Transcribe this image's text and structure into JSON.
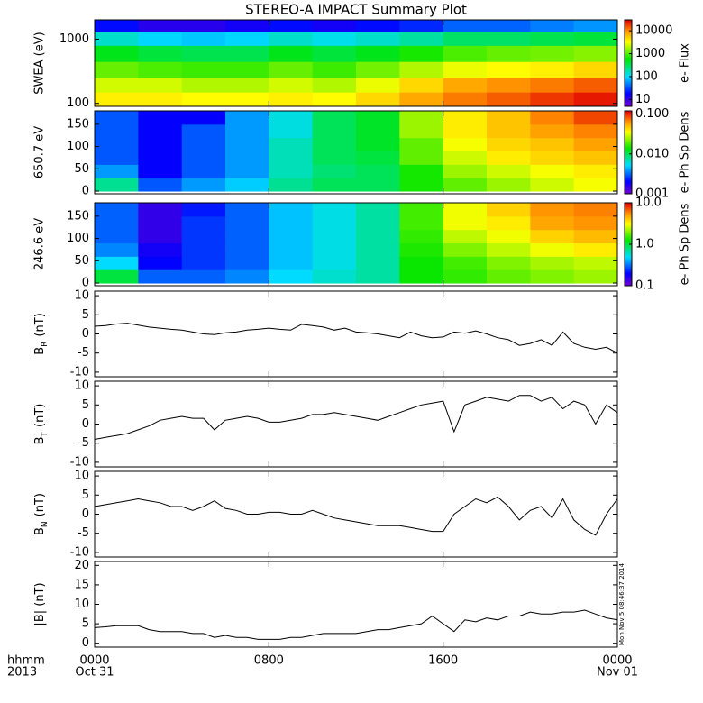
{
  "chart_data": [
    {
      "type": "heatmap",
      "title": "STEREO-A IMPACT Summary Plot",
      "ylabel": "SWEA (eV)",
      "yscale": "log",
      "ylim": [
        90,
        2000
      ],
      "yticks": [
        100,
        1000
      ],
      "x_edges": [
        0,
        2,
        4,
        6,
        8,
        10,
        12,
        14,
        16,
        18,
        20,
        22,
        24
      ],
      "y_edges": [
        90,
        150,
        250,
        450,
        800,
        1300,
        2000
      ],
      "z": [
        [
          4000,
          4000,
          3500,
          3500,
          4000,
          3500,
          5000,
          8000,
          12000,
          15000,
          20000,
          25000
        ],
        [
          2500,
          2500,
          2000,
          2000,
          2500,
          2000,
          3000,
          5000,
          8000,
          10000,
          12000,
          15000
        ],
        [
          1200,
          1000,
          900,
          900,
          1200,
          900,
          1300,
          2000,
          3000,
          3500,
          4000,
          5000
        ],
        [
          500,
          400,
          350,
          350,
          500,
          400,
          500,
          700,
          1000,
          1200,
          1300,
          1500
        ],
        [
          150,
          100,
          90,
          100,
          150,
          120,
          150,
          200,
          300,
          300,
          350,
          400
        ],
        [
          20,
          12,
          12,
          15,
          20,
          15,
          20,
          25,
          40,
          40,
          50,
          60
        ]
      ],
      "zscale": "log",
      "zlim": [
        5,
        30000
      ],
      "zticks": [
        10,
        100,
        1000,
        10000
      ],
      "zlabel": "e- Flux"
    },
    {
      "type": "heatmap",
      "ylabel": "650.7 eV",
      "yscale": "linear",
      "ylim": [
        -6,
        180
      ],
      "yticks": [
        0,
        50,
        100,
        150
      ],
      "x_edges": [
        0,
        2,
        4,
        6,
        8,
        10,
        12,
        14,
        16,
        18,
        20,
        22,
        24
      ],
      "y_edges": [
        0,
        30,
        60,
        90,
        120,
        150,
        180
      ],
      "z": [
        [
          0.008,
          0.003,
          0.004,
          0.005,
          0.008,
          0.01,
          0.01,
          0.015,
          0.02,
          0.025,
          0.03,
          0.035
        ],
        [
          0.004,
          0.002,
          0.003,
          0.004,
          0.007,
          0.009,
          0.01,
          0.015,
          0.025,
          0.03,
          0.035,
          0.04
        ],
        [
          0.003,
          0.002,
          0.003,
          0.004,
          0.007,
          0.01,
          0.011,
          0.02,
          0.03,
          0.04,
          0.045,
          0.05
        ],
        [
          0.003,
          0.002,
          0.003,
          0.004,
          0.007,
          0.01,
          0.012,
          0.02,
          0.035,
          0.045,
          0.05,
          0.06
        ],
        [
          0.003,
          0.002,
          0.003,
          0.004,
          0.006,
          0.01,
          0.012,
          0.025,
          0.04,
          0.05,
          0.06,
          0.07
        ],
        [
          0.003,
          0.002,
          0.002,
          0.004,
          0.006,
          0.01,
          0.012,
          0.025,
          0.04,
          0.05,
          0.07,
          0.09
        ]
      ],
      "zscale": "log",
      "zlim": [
        0.001,
        0.12
      ],
      "zticks": [
        0.001,
        {
          "value": 0.01,
          "label": "0.010"
        },
        {
          "value": 0.1,
          "label": "0.100"
        }
      ],
      "zlabel": "e- Ph Sp Dens"
    },
    {
      "type": "heatmap",
      "ylabel": "246.6 eV",
      "yscale": "linear",
      "ylim": [
        -6,
        180
      ],
      "yticks": [
        0,
        50,
        100,
        150
      ],
      "x_edges": [
        0,
        2,
        4,
        6,
        8,
        10,
        12,
        14,
        16,
        18,
        20,
        22,
        24
      ],
      "y_edges": [
        0,
        30,
        60,
        90,
        120,
        150,
        180
      ],
      "z": [
        [
          1.0,
          0.3,
          0.3,
          0.35,
          0.5,
          0.6,
          0.7,
          1.3,
          1.5,
          1.8,
          2,
          2.2
        ],
        [
          0.5,
          0.2,
          0.25,
          0.3,
          0.45,
          0.55,
          0.7,
          1.3,
          1.6,
          2,
          2.3,
          2.5
        ],
        [
          0.35,
          0.18,
          0.25,
          0.3,
          0.45,
          0.55,
          0.7,
          1.4,
          2,
          2.5,
          3,
          3.5
        ],
        [
          0.3,
          0.15,
          0.25,
          0.3,
          0.45,
          0.55,
          0.7,
          1.5,
          2.5,
          3,
          4,
          4.5
        ],
        [
          0.3,
          0.15,
          0.25,
          0.3,
          0.45,
          0.55,
          0.7,
          1.6,
          3,
          3.5,
          5,
          5.5
        ],
        [
          0.3,
          0.15,
          0.22,
          0.3,
          0.45,
          0.55,
          0.7,
          1.6,
          3,
          4,
          5.5,
          6
        ]
      ],
      "zscale": "log",
      "zlim": [
        0.1,
        10
      ],
      "zticks": [
        0.1,
        {
          "value": 1,
          "label": "1.0"
        },
        {
          "value": 10,
          "label": "10.0"
        }
      ],
      "zlabel": "e- Ph Sp Dens"
    },
    {
      "type": "line",
      "ylabel": {
        "text": "B",
        "sub": "R",
        "unit": "(nT)"
      },
      "ylim": [
        -11.2,
        11.2
      ],
      "yticks": [
        -10,
        -5,
        0,
        5,
        10
      ],
      "color": "#000000",
      "x": [
        0,
        0.5,
        1,
        1.5,
        2,
        2.5,
        3,
        3.5,
        4,
        4.5,
        5,
        5.5,
        6,
        6.5,
        7,
        7.5,
        8,
        8.5,
        9,
        9.5,
        10,
        10.5,
        11,
        11.5,
        12,
        12.5,
        13,
        13.5,
        14,
        14.5,
        15,
        15.5,
        16,
        16.5,
        17,
        17.5,
        18,
        18.5,
        19,
        19.5,
        20,
        20.5,
        21,
        21.5,
        22,
        22.5,
        23,
        23.5,
        24
      ],
      "values": [
        2,
        2.2,
        2.6,
        2.8,
        2.3,
        1.8,
        1.5,
        1.2,
        1.0,
        0.5,
        0,
        -0.2,
        0.3,
        0.5,
        1.0,
        1.2,
        1.5,
        1.2,
        1.0,
        2.5,
        2.2,
        1.8,
        1.0,
        1.5,
        0.5,
        0.3,
        0,
        -0.5,
        -1.0,
        0.5,
        -0.5,
        -1.0,
        -0.8,
        0.5,
        0.2,
        0.8,
        0,
        -1,
        -1.5,
        -3,
        -2.5,
        -1.5,
        -3,
        0.5,
        -2.5,
        -3.5,
        -4,
        -3.5,
        -5
      ]
    },
    {
      "type": "line",
      "ylabel": {
        "text": "B",
        "sub": "T",
        "unit": "(nT)"
      },
      "ylim": [
        -11.2,
        11.2
      ],
      "yticks": [
        -10,
        -5,
        0,
        5,
        10
      ],
      "color": "#000000",
      "x": [
        0,
        0.5,
        1,
        1.5,
        2,
        2.5,
        3,
        3.5,
        4,
        4.5,
        5,
        5.5,
        6,
        6.5,
        7,
        7.5,
        8,
        8.5,
        9,
        9.5,
        10,
        10.5,
        11,
        11.5,
        12,
        12.5,
        13,
        13.5,
        14,
        14.5,
        15,
        15.5,
        16,
        16.5,
        17,
        17.5,
        18,
        18.5,
        19,
        19.5,
        20,
        20.5,
        21,
        21.5,
        22,
        22.5,
        23,
        23.5,
        24
      ],
      "values": [
        -4,
        -3.5,
        -3,
        -2.5,
        -1.5,
        -0.5,
        1,
        1.5,
        2,
        1.5,
        1.5,
        -1.5,
        1,
        1.5,
        2,
        1.5,
        0.5,
        0.5,
        1,
        1.5,
        2.5,
        2.5,
        3,
        2.5,
        2,
        1.5,
        1,
        2,
        3,
        4,
        5,
        5.5,
        6,
        -2,
        5,
        6,
        7,
        6.5,
        6,
        7.5,
        7.5,
        6,
        7,
        4,
        6,
        5,
        0,
        5,
        3
      ]
    },
    {
      "type": "line",
      "ylabel": {
        "text": "B",
        "sub": "N",
        "unit": "(nT)"
      },
      "ylim": [
        -11.2,
        11.2
      ],
      "yticks": [
        -10,
        -5,
        0,
        5,
        10
      ],
      "color": "#000000",
      "x": [
        0,
        0.5,
        1,
        1.5,
        2,
        2.5,
        3,
        3.5,
        4,
        4.5,
        5,
        5.5,
        6,
        6.5,
        7,
        7.5,
        8,
        8.5,
        9,
        9.5,
        10,
        10.5,
        11,
        11.5,
        12,
        12.5,
        13,
        13.5,
        14,
        14.5,
        15,
        15.5,
        16,
        16.5,
        17,
        17.5,
        18,
        18.5,
        19,
        19.5,
        20,
        20.5,
        21,
        21.5,
        22,
        22.5,
        23,
        23.5,
        24
      ],
      "values": [
        2,
        2.5,
        3,
        3.5,
        4,
        3.5,
        3,
        2,
        2,
        1,
        2,
        3.5,
        1.5,
        1,
        0,
        0,
        0.5,
        0.5,
        0,
        0,
        1,
        0,
        -1,
        -1.5,
        -2,
        -2.5,
        -3,
        -3,
        -3,
        -3.5,
        -4,
        -4.5,
        -4.5,
        0,
        2,
        4,
        3,
        4.5,
        2,
        -1.5,
        1,
        2,
        -1,
        4,
        -1.5,
        -4,
        -5.5,
        0,
        4
      ]
    },
    {
      "type": "line",
      "ylabel": {
        "text": "|B| (nT)"
      },
      "ylim": [
        -1,
        21
      ],
      "yticks": [
        0,
        5,
        10,
        15,
        20
      ],
      "color": "#000000",
      "x": [
        0,
        0.5,
        1,
        1.5,
        2,
        2.5,
        3,
        3.5,
        4,
        4.5,
        5,
        5.5,
        6,
        6.5,
        7,
        7.5,
        8,
        8.5,
        9,
        9.5,
        10,
        10.5,
        11,
        11.5,
        12,
        12.5,
        13,
        13.5,
        14,
        14.5,
        15,
        15.5,
        16,
        16.5,
        17,
        17.5,
        18,
        18.5,
        19,
        19.5,
        20,
        20.5,
        21,
        21.5,
        22,
        22.5,
        23,
        23.5,
        24
      ],
      "values": [
        4,
        4.2,
        4.5,
        4.5,
        4.5,
        3.5,
        3,
        3,
        3,
        2.5,
        2.5,
        1.5,
        2,
        1.5,
        1.5,
        1,
        1,
        1,
        1.5,
        1.5,
        2,
        2.5,
        2.5,
        2.5,
        2.5,
        3,
        3.5,
        3.5,
        4,
        4.5,
        5,
        7,
        5,
        3,
        6,
        5.5,
        6.5,
        6,
        7,
        7,
        8,
        7.5,
        7.5,
        8,
        8,
        8.5,
        7.5,
        6.5,
        6
      ],
      "xlim": [
        0,
        24
      ],
      "xticks": [
        {
          "value": 0,
          "label": "0000"
        },
        {
          "value": 8,
          "label": "0800"
        },
        {
          "value": 16,
          "label": "1600"
        },
        {
          "value": 24,
          "label": "0000"
        }
      ],
      "xtick_dates": [
        {
          "value": 0,
          "label": "Oct 31"
        },
        {
          "value": 24,
          "label": "Nov 01"
        }
      ],
      "xformat_label": "hhmm",
      "year_label": "2013",
      "stamp": "Mon Nov 5 08:46:37 2014"
    }
  ]
}
